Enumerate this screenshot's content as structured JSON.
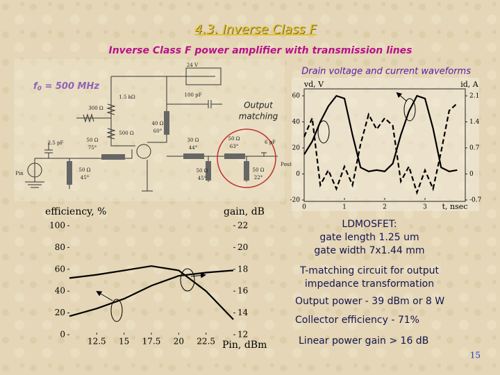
{
  "slide": {
    "title": "4.3. Inverse Class F",
    "subtitle": "Inverse Class F power amplifier with transmission lines",
    "waveform_caption": "Drain voltage and current waveforms",
    "f0": {
      "symbol": "f",
      "sub": "0",
      "rest": " = 500 MHz"
    },
    "output_matching": [
      "Output",
      "matching"
    ],
    "notes": [
      "LDMOSFET:",
      "gate length 1.25 um",
      "gate width 7x1.44 mm",
      "T-matching circuit for output",
      "impedance transformation",
      "Output power - 39 dBm or 8 W",
      "Collector efficiency -  71%",
      "Linear power gain > 16 dB"
    ],
    "page_number": "15"
  },
  "circuit": {
    "labels": [
      "24 V",
      "1.5 kΩ",
      "100 pF",
      "300 Ω",
      "40 Ω",
      "60°",
      "500 Ω",
      "2.5 pF",
      "50 Ω",
      "75°",
      "30 Ω",
      "44°",
      "50 Ω",
      "63°",
      "6 pF",
      "Pin",
      "Pout",
      "50 Ω",
      "45°",
      "50 Ω",
      "45°",
      "50 Ω",
      "22°"
    ]
  },
  "chart_data": [
    {
      "type": "line",
      "ylabel": "vd, V",
      "y2label": "id, A",
      "xlabel": "t, nsec",
      "x": [
        0,
        0.2,
        0.4,
        0.6,
        0.8,
        1.0,
        1.2,
        1.4,
        1.6,
        1.8,
        2.0,
        2.2,
        2.4,
        2.6,
        2.8,
        3.0,
        3.2,
        3.4,
        3.6,
        3.8
      ],
      "xlim": [
        0,
        4
      ],
      "xticks": [
        0,
        1,
        2,
        3
      ],
      "ylim": [
        -20,
        60
      ],
      "yticks": [
        -20,
        0,
        20,
        40,
        60
      ],
      "y2lim": [
        -0.7,
        2.1
      ],
      "y2ticks": [
        -0.7,
        0,
        0.7,
        1.4,
        2.1
      ],
      "series": [
        {
          "color": "#000000",
          "style": "solid",
          "values": [
            15,
            25,
            40,
            52,
            60,
            58,
            30,
            5,
            2,
            3,
            2,
            8,
            30,
            48,
            60,
            58,
            35,
            5,
            2,
            3
          ]
        },
        {
          "color": "#000000",
          "style": "dashed",
          "axis": "y2",
          "values": [
            1.0,
            1.5,
            -0.3,
            0.1,
            -0.4,
            0.2,
            -0.3,
            0.8,
            1.6,
            1.2,
            1.5,
            1.3,
            -0.2,
            0.2,
            -0.5,
            0.1,
            -0.4,
            0.6,
            1.7,
            1.9
          ]
        }
      ]
    },
    {
      "type": "line",
      "ylabel": "efficiency, %",
      "y2label": "gain, dB",
      "xlabel": "Pin, dBm",
      "x": [
        10,
        12.5,
        15,
        17.5,
        20,
        22.5,
        25
      ],
      "xlim": [
        10,
        25
      ],
      "xticks": [
        12.5,
        15,
        17.5,
        20,
        22.5
      ],
      "ylim": [
        0,
        100
      ],
      "yticks": [
        0,
        20,
        40,
        60,
        80,
        100
      ],
      "y2lim": [
        12,
        22
      ],
      "y2ticks": [
        12,
        14,
        16,
        18,
        20,
        22
      ],
      "series": [
        {
          "color": "#000000",
          "style": "solid",
          "values": [
            17,
            24,
            33,
            45,
            54,
            57,
            59
          ]
        },
        {
          "color": "#000000",
          "style": "solid",
          "axis": "y2",
          "values": [
            17.2,
            17.5,
            17.9,
            18.3,
            17.9,
            16.0,
            13.4
          ]
        }
      ]
    }
  ]
}
